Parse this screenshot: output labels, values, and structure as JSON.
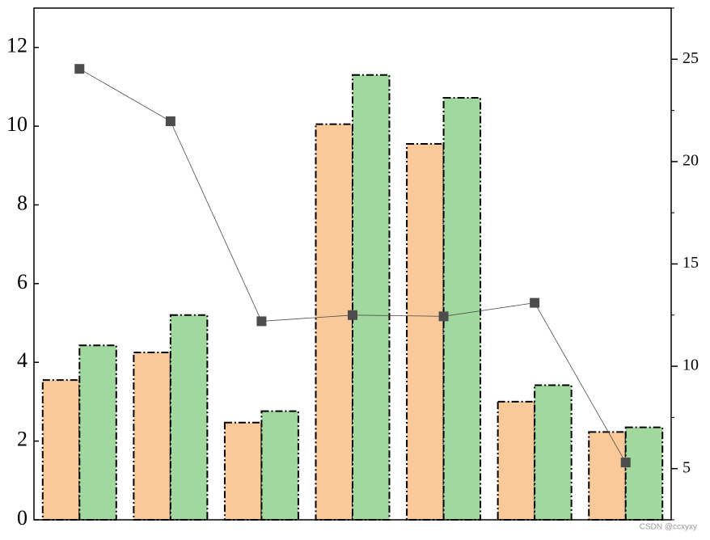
{
  "chart_data": {
    "type": "bar-line",
    "categories": [
      null,
      null,
      null,
      null,
      null,
      null,
      null
    ],
    "series": [
      {
        "type": "bar",
        "color": "#f9c999",
        "values": [
          3.55,
          4.25,
          2.47,
          10.05,
          9.55,
          3.0,
          2.23
        ]
      },
      {
        "type": "bar",
        "color": "#a0d89e",
        "values": [
          4.43,
          5.2,
          2.76,
          11.3,
          10.72,
          3.42,
          2.35
        ]
      },
      {
        "type": "line",
        "axis": "y2",
        "color": "#4d4d4d",
        "values": [
          24.53,
          21.97,
          12.2,
          12.5,
          12.44,
          13.1,
          5.3
        ]
      }
    ],
    "ylim": [
      0,
      13
    ],
    "yticks": [
      0,
      2,
      4,
      6,
      8,
      10,
      12
    ],
    "y2lim": [
      2.5,
      27.5
    ],
    "y2ticks": [
      5,
      10,
      15,
      20,
      25
    ],
    "watermark": "CSDN @ccxyxy"
  }
}
